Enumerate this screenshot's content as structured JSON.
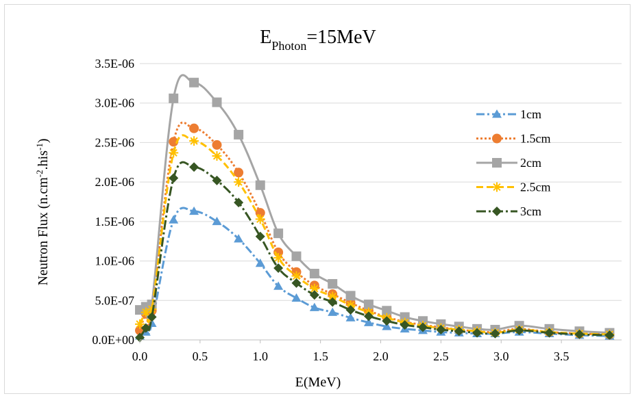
{
  "chart_data": {
    "type": "line",
    "title": {
      "main": "E",
      "subscript": "Photon",
      "rest": "=15MeV"
    },
    "xlabel": "E(MeV)",
    "ylabel": {
      "main": "Neutron Flux  (n.cm",
      "sup1": "-2",
      "mid": ".his",
      "sup2": "-1",
      "end": ")"
    },
    "xlim": [
      0,
      4.0
    ],
    "ylim": [
      0,
      3.5e-06
    ],
    "xticks": [
      0.0,
      0.5,
      1.0,
      1.5,
      2.0,
      2.5,
      3.0,
      3.5
    ],
    "xtick_labels": [
      "0.0",
      "0.5",
      "1.0",
      "1.5",
      "2.0",
      "2.5",
      "3.0",
      "3.5"
    ],
    "yticks": [
      0,
      5e-07,
      1e-06,
      1.5e-06,
      2e-06,
      2.5e-06,
      3e-06,
      3.5e-06
    ],
    "ytick_labels": [
      "0.0E+00",
      "5.0E-07",
      "1.0E-06",
      "1.5E-06",
      "2.0E-06",
      "2.5E-06",
      "3.0E-06",
      "3.5E-06"
    ],
    "grid": "horizontal",
    "legend_position": "right",
    "x": [
      0.0,
      0.05,
      0.1,
      0.28,
      0.45,
      0.64,
      0.82,
      1.0,
      1.15,
      1.3,
      1.45,
      1.6,
      1.75,
      1.9,
      2.05,
      2.2,
      2.35,
      2.5,
      2.65,
      2.8,
      2.95,
      3.15,
      3.4,
      3.65,
      3.9
    ],
    "series": [
      {
        "name": "1cm",
        "color": "#5b9bd5",
        "marker": "triangle",
        "dash": "12,4,3,4",
        "values": [
          5e-08,
          1e-07,
          2.1e-07,
          1.52e-06,
          1.63e-06,
          1.5e-06,
          1.28e-06,
          9.7e-07,
          6.8e-07,
          5.3e-07,
          4.1e-07,
          3.5e-07,
          2.8e-07,
          2.2e-07,
          1.7e-07,
          1.4e-07,
          1.2e-07,
          1e-07,
          9e-08,
          8e-08,
          8e-08,
          1e-07,
          8e-08,
          6e-08,
          5e-08
        ]
      },
      {
        "name": "1.5cm",
        "color": "#ed7d31",
        "marker": "circle",
        "dash": "3,3",
        "values": [
          1.2e-07,
          3.3e-07,
          3.7e-07,
          2.51e-06,
          2.68e-06,
          2.47e-06,
          2.12e-06,
          1.61e-06,
          1.11e-06,
          8.6e-07,
          6.9e-07,
          5.8e-07,
          4.7e-07,
          3.7e-07,
          2.9e-07,
          2.3e-07,
          1.9e-07,
          1.6e-07,
          1.3e-07,
          1.1e-07,
          1e-07,
          1.4e-07,
          1e-07,
          8e-08,
          7e-08
        ]
      },
      {
        "name": "2cm",
        "color": "#a5a5a5",
        "marker": "square",
        "dash": "",
        "values": [
          3.8e-07,
          4.2e-07,
          4.5e-07,
          3.06e-06,
          3.26e-06,
          3.01e-06,
          2.6e-06,
          1.96e-06,
          1.35e-06,
          1.06e-06,
          8.4e-07,
          7.1e-07,
          5.6e-07,
          4.5e-07,
          3.7e-07,
          2.9e-07,
          2.4e-07,
          2e-07,
          1.7e-07,
          1.4e-07,
          1.3e-07,
          1.8e-07,
          1.4e-07,
          1.1e-07,
          9e-08
        ]
      },
      {
        "name": "2.5cm",
        "color": "#ffc000",
        "marker": "asterisk",
        "dash": "10,5",
        "values": [
          2e-07,
          3.5e-07,
          3.9e-07,
          2.37e-06,
          2.52e-06,
          2.33e-06,
          2e-06,
          1.53e-06,
          1.04e-06,
          8.1e-07,
          6.5e-07,
          5.5e-07,
          4.4e-07,
          3.5e-07,
          2.8e-07,
          2.2e-07,
          1.8e-07,
          1.5e-07,
          1.3e-07,
          1.1e-07,
          9e-08,
          1.3e-07,
          1e-07,
          8e-08,
          7e-08
        ]
      },
      {
        "name": "3cm",
        "color": "#375623",
        "marker": "diamond",
        "dash": "14,4,3,4",
        "values": [
          3e-08,
          1.5e-07,
          2.9e-07,
          2.05e-06,
          2.19e-06,
          2.02e-06,
          1.74e-06,
          1.31e-06,
          9.1e-07,
          7.2e-07,
          5.7e-07,
          4.8e-07,
          3.8e-07,
          3e-07,
          2.4e-07,
          1.9e-07,
          1.6e-07,
          1.3e-07,
          1.1e-07,
          9e-08,
          8e-08,
          1.2e-07,
          9e-08,
          7e-08,
          6e-08
        ]
      }
    ]
  }
}
